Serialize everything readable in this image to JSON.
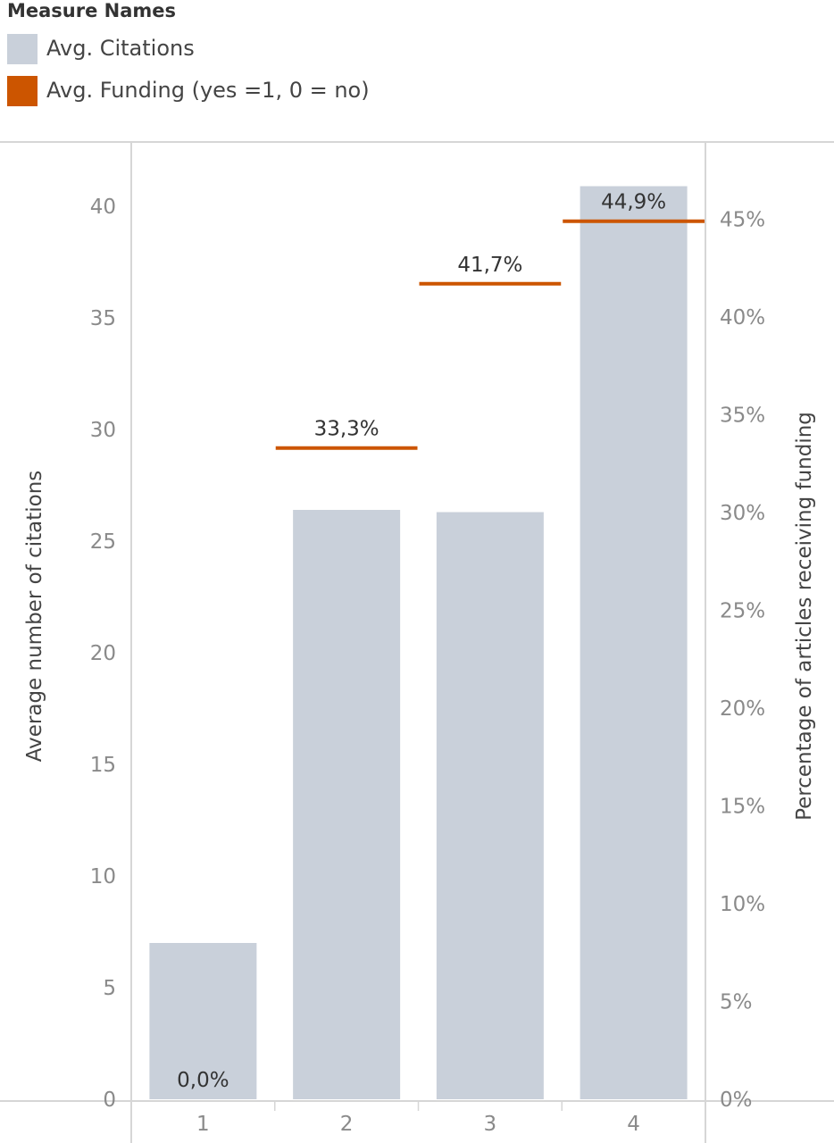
{
  "legend": {
    "title": "Measure Names",
    "items": [
      {
        "label": "Avg. Citations",
        "color": "#c9d0da"
      },
      {
        "label": "Avg. Funding (yes =1, 0 = no)",
        "color": "#cc5500"
      }
    ]
  },
  "chart_data": {
    "type": "bar",
    "categories": [
      "1",
      "2",
      "3",
      "4"
    ],
    "series": [
      {
        "name": "Avg. Citations",
        "axis": "left",
        "values": [
          7.0,
          26.4,
          26.3,
          40.9
        ],
        "color": "#c9d0da"
      },
      {
        "name": "Avg. Funding (yes =1, 0 = no)",
        "axis": "right",
        "values": [
          0.0,
          33.3,
          41.7,
          44.9
        ],
        "color": "#cc5500"
      }
    ],
    "funding_labels": [
      "0,0%",
      "33,3%",
      "41,7%",
      "44,9%"
    ],
    "ylabel": "Average number of citations",
    "y2label": "Percentage of articles receiving funding",
    "ylim": [
      0,
      42
    ],
    "y2lim": [
      0,
      47.5
    ],
    "yticks": [
      0,
      5,
      10,
      15,
      20,
      25,
      30,
      35,
      40
    ],
    "y2ticks": [
      0,
      5,
      10,
      15,
      20,
      25,
      30,
      35,
      40,
      45
    ],
    "y2tick_labels": [
      "0%",
      "5%",
      "10%",
      "15%",
      "20%",
      "25%",
      "30%",
      "35%",
      "40%",
      "45%"
    ],
    "grid": false
  }
}
